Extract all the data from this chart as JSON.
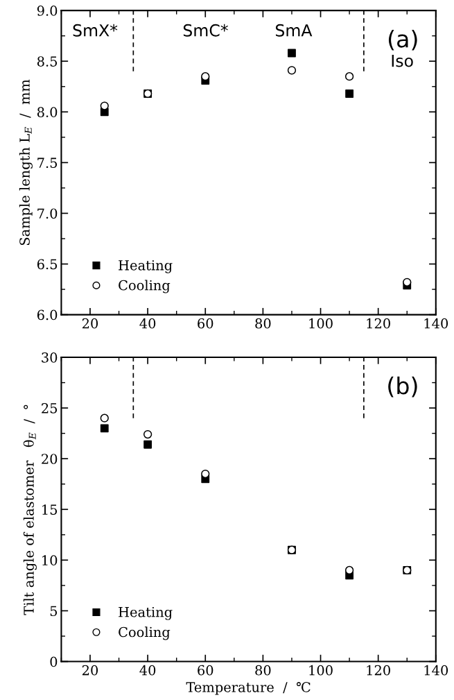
{
  "chart_data": [
    {
      "type": "scatter",
      "ylabel": "Sample length L$_{E}$  /  mm",
      "x": [
        25,
        40,
        60,
        90,
        110,
        130
      ],
      "xlim": [
        10,
        140
      ],
      "xticks": [
        20,
        40,
        60,
        80,
        100,
        120,
        140
      ],
      "ylim": [
        6.0,
        9.0
      ],
      "yticks": [
        {
          "value": 6.0,
          "label": "6.0"
        },
        {
          "value": 6.5,
          "label": "6.5"
        },
        {
          "value": 7.0,
          "label": "7.0"
        },
        {
          "value": 7.5,
          "label": "7.5"
        },
        {
          "value": 8.0,
          "label": "8.0"
        },
        {
          "value": 8.5,
          "label": "8.5"
        },
        {
          "value": 9.0,
          "label": "9.0"
        }
      ],
      "series": [
        {
          "name": "Heating",
          "color": "#000000",
          "marker": "square",
          "values": [
            8.0,
            8.18,
            8.31,
            8.58,
            8.18,
            6.29
          ]
        },
        {
          "name": "Cooling",
          "color": "#000000",
          "marker": "circle",
          "values": [
            8.06,
            8.18,
            8.35,
            8.41,
            8.35,
            6.32
          ]
        }
      ],
      "ref_lines": [
        {
          "axis": "x",
          "value": 35,
          "line_style": "dashed",
          "color": "#000000"
        },
        {
          "axis": "x",
          "value": 115,
          "line_style": "dashed",
          "color": "#000000"
        }
      ],
      "annotations": [
        "SmX*",
        "SmC*",
        "SmA",
        "Iso",
        "(a)"
      ],
      "legend": "bottom left",
      "grid": false
    },
    {
      "type": "scatter",
      "xlabel": "Temperature  /  ℃",
      "ylabel": "Tilt angle of elastomer   θ$_{E}$  /  °",
      "x": [
        25,
        40,
        60,
        90,
        110,
        130
      ],
      "xlim": [
        10,
        140
      ],
      "xticks": [
        20,
        40,
        60,
        80,
        100,
        120,
        140
      ],
      "ylim": [
        0,
        30
      ],
      "yticks": [
        0,
        5,
        10,
        15,
        20,
        25,
        30
      ],
      "series": [
        {
          "name": "Heating",
          "color": "#000000",
          "marker": "square",
          "values": [
            23.0,
            21.4,
            18.0,
            11.0,
            8.5,
            9.0
          ]
        },
        {
          "name": "Cooling",
          "color": "#000000",
          "marker": "circle",
          "values": [
            24.0,
            22.4,
            18.5,
            11.0,
            9.0,
            9.0
          ]
        }
      ],
      "ref_lines": [
        {
          "axis": "x",
          "value": 35,
          "line_style": "dashed",
          "color": "#000000"
        },
        {
          "axis": "x",
          "value": 115,
          "line_style": "dashed",
          "color": "#000000"
        }
      ],
      "annotations": [
        "(b)"
      ],
      "legend": "bottom left",
      "grid": false
    }
  ]
}
